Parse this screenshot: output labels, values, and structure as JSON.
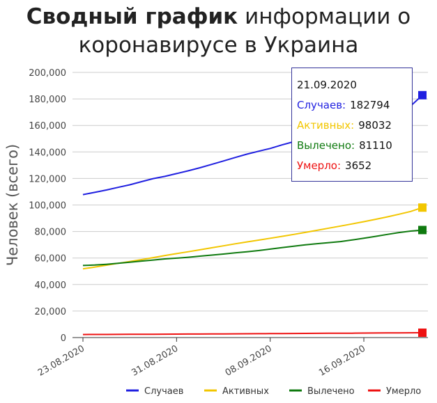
{
  "title": {
    "bold": "Сводный график",
    "rest_line1": "информации о",
    "line2": "коронавирусе в Украина"
  },
  "tooltip": {
    "date": "21.09.2020",
    "rows": [
      {
        "label": "Случаев:",
        "value": "182794",
        "color": "#1f1fe0"
      },
      {
        "label": "Активных:",
        "value": "98032",
        "color": "#f2c600"
      },
      {
        "label": "Вылечено:",
        "value": "81110",
        "color": "#0f7a0f"
      },
      {
        "label": "Умерло:",
        "value": "3652",
        "color": "#ee1111"
      }
    ]
  },
  "chart_data": {
    "type": "line",
    "ylabel": "Человек (всего)",
    "ylim": [
      0,
      200000
    ],
    "yticks": [
      0,
      20000,
      40000,
      60000,
      80000,
      100000,
      120000,
      140000,
      160000,
      180000,
      200000
    ],
    "ytick_labels": [
      "0",
      "20,000",
      "40,000",
      "60,000",
      "80,000",
      "100,000",
      "120,000",
      "140,000",
      "160,000",
      "180,000",
      "200,000"
    ],
    "x": [
      "23.08.2020",
      "24.08.2020",
      "25.08.2020",
      "26.08.2020",
      "27.08.2020",
      "28.08.2020",
      "29.08.2020",
      "30.08.2020",
      "31.08.2020",
      "01.09.2020",
      "02.09.2020",
      "03.09.2020",
      "04.09.2020",
      "05.09.2020",
      "06.09.2020",
      "07.09.2020",
      "08.09.2020",
      "09.09.2020",
      "10.09.2020",
      "11.09.2020",
      "12.09.2020",
      "13.09.2020",
      "14.09.2020",
      "15.09.2020",
      "16.09.2020",
      "17.09.2020",
      "18.09.2020",
      "19.09.2020",
      "20.09.2020",
      "21.09.2020"
    ],
    "xtick_labels": [
      "23.08.2020",
      "31.08.2020",
      "08.09.2020",
      "16.09.2020"
    ],
    "grid": true,
    "legend_position": "bottom-right",
    "series": [
      {
        "name": "Случаев",
        "color": "#1f1fe0",
        "values": [
          107800,
          109500,
          111300,
          113300,
          115200,
          117600,
          119900,
          121600,
          123700,
          125800,
          128100,
          130600,
          133200,
          135800,
          138300,
          140500,
          142600,
          145300,
          147700,
          149900,
          152300,
          154800,
          157200,
          159700,
          162300,
          165100,
          168000,
          171300,
          174700,
          182794
        ]
      },
      {
        "name": "Активных",
        "color": "#f2c600",
        "values": [
          51800,
          53200,
          54600,
          56000,
          57400,
          58800,
          60300,
          61900,
          63300,
          64700,
          66200,
          67700,
          69200,
          70700,
          72100,
          73500,
          74900,
          76300,
          77800,
          79300,
          80900,
          82500,
          84100,
          85700,
          87400,
          89200,
          91000,
          93000,
          95100,
          98032
        ]
      },
      {
        "name": "Вылечено",
        "color": "#0f7a0f",
        "values": [
          54400,
          54700,
          55300,
          56000,
          56800,
          57700,
          58500,
          59300,
          59900,
          60600,
          61400,
          62200,
          63000,
          63900,
          64700,
          65600,
          66700,
          67800,
          68900,
          69900,
          70800,
          71600,
          72400,
          73600,
          74900,
          76300,
          77800,
          79200,
          80300,
          81110
        ]
      },
      {
        "name": "Умерло",
        "color": "#ee1111",
        "values": [
          2300,
          2340,
          2380,
          2420,
          2460,
          2500,
          2540,
          2580,
          2620,
          2660,
          2700,
          2740,
          2790,
          2830,
          2880,
          2930,
          2980,
          3030,
          3080,
          3130,
          3180,
          3230,
          3280,
          3330,
          3390,
          3450,
          3510,
          3560,
          3610,
          3652
        ]
      }
    ]
  }
}
